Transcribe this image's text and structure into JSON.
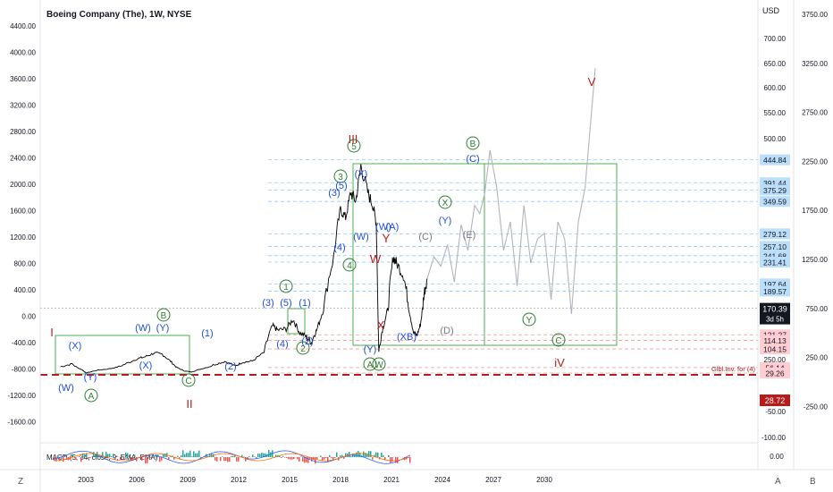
{
  "header": {
    "title": "Boeing Company (The), 1W, NYSE",
    "currency": "USD"
  },
  "colors": {
    "price": "#000000",
    "projection": "#b2b5be",
    "box": "#4caf50",
    "red": "#b71c1c",
    "blue": "#1f4fd8",
    "green": "#2e7d32",
    "gray": "#787b86",
    "level_line": "#90caf9",
    "price_tag": "#131722",
    "floor_tag": "#b71c1c"
  },
  "chart_data": {
    "type": "line",
    "title": "Boeing Company (The), 1W, NYSE",
    "xlabel": "",
    "ylabel": "",
    "x_ticks": [
      "2003",
      "2006",
      "2009",
      "2012",
      "2015",
      "2018",
      "2021",
      "2024",
      "2027",
      "2030"
    ],
    "left_axis_ticks": [
      "4400.00",
      "4000.00",
      "3600.00",
      "3200.00",
      "2800.00",
      "2400.00",
      "2000.00",
      "1600.00",
      "1200.00",
      "800.00",
      "400.00",
      "0.00",
      "-400.00",
      "-800.00",
      "-1200.00",
      "-1600.00"
    ],
    "mid_axis_ticks": [
      "700.00",
      "650.00",
      "600.00",
      "550.00",
      "500.00",
      "250.00",
      "-50.00",
      "-100.00"
    ],
    "right_axis_ticks": [
      "3750.00",
      "3250.00",
      "2750.00",
      "2250.00",
      "1750.00",
      "1250.00",
      "750.00",
      "250.00",
      "-250.00"
    ],
    "price_levels": [
      "444.84",
      "391.44",
      "375.29",
      "349.59",
      "279.12",
      "257.10",
      "241.68",
      "231.41",
      "197.64",
      "189.57",
      "121.27",
      "114.13",
      "104.15",
      "56.14",
      "29.26"
    ],
    "current_price": "170.39",
    "countdown": "3d 5h",
    "floor_price": "28.72",
    "floor_label": "Glbl.Inv. for (4)",
    "indicator_label": "MACD (5, 34, close, 9, EMA, EMA)",
    "indicator_ticks": [
      "0.00"
    ],
    "series": [
      {
        "values_desc": "historical",
        "x": [
          2001.5,
          2002.2,
          2002.8,
          2003.0,
          2003.6,
          2004.5,
          2005.2,
          2006.0,
          2006.5,
          2007.0,
          2007.5,
          2008.0,
          2008.4,
          2008.8,
          2009.2,
          2009.8,
          2010.5,
          2011.2,
          2011.8,
          2012.2,
          2012.8,
          2013.5,
          2014.0,
          2014.3,
          2014.8,
          2015.2,
          2015.6,
          2016.0,
          2016.3,
          2016.6,
          2017.0,
          2017.6,
          2018.0,
          2018.3,
          2018.6,
          2018.9,
          2019.2,
          2019.6,
          2019.9,
          2020.1,
          2020.25,
          2020.5,
          2020.8,
          2021.1,
          2021.3,
          2021.7,
          2022.0,
          2022.3,
          2022.5,
          2022.7,
          2022.9,
          2023.1
        ],
        "y": [
          60,
          68,
          45,
          30,
          42,
          52,
          65,
          82,
          88,
          98,
          95,
          75,
          55,
          40,
          35,
          50,
          65,
          75,
          62,
          72,
          76,
          100,
          138,
          130,
          132,
          150,
          125,
          118,
          112,
          130,
          170,
          240,
          330,
          310,
          370,
          350,
          430,
          370,
          340,
          300,
          100,
          135,
          170,
          240,
          230,
          210,
          175,
          125,
          120,
          140,
          185,
          205
        ]
      },
      {
        "values_desc": "projection",
        "x": [
          2023.1,
          2023.5,
          2023.9,
          2024.3,
          2024.7,
          2025.1,
          2025.5,
          2025.9,
          2026.2,
          2026.5,
          2026.8,
          2027.2,
          2027.6,
          2028.0,
          2028.4,
          2028.8,
          2029.2,
          2029.6,
          2030.0,
          2030.4,
          2030.8,
          2031.2,
          2031.6,
          2032.0,
          2032.4,
          2033.0
        ],
        "y": [
          205,
          240,
          225,
          260,
          200,
          295,
          250,
          340,
          320,
          370,
          470,
          380,
          250,
          300,
          195,
          340,
          230,
          270,
          280,
          180,
          300,
          270,
          160,
          300,
          380,
          640
        ]
      }
    ],
    "annotations": [
      "I",
      "II",
      "III",
      "iV",
      "V",
      "A",
      "B",
      "C",
      "X",
      "Y",
      "W",
      "(W)",
      "(X)",
      "(Y)",
      "(1)",
      "(2)",
      "(3)",
      "(4)",
      "(5)",
      "(A)",
      "(B)",
      "(C)",
      "(D)",
      "(E)",
      "(XB)",
      "1",
      "2",
      "3",
      "4",
      "5"
    ],
    "grid": false,
    "legend": "none"
  },
  "toolbar": {
    "left_button": "Z",
    "right_button_1": "A",
    "right_button_2": "B"
  }
}
